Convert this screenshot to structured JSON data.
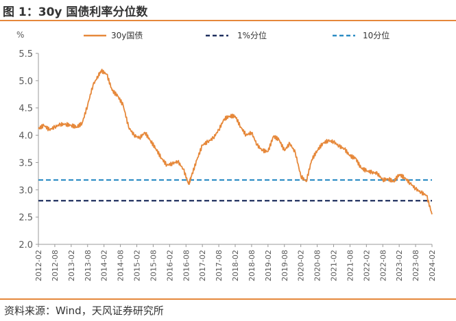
{
  "figure": {
    "title": "图 1：30y 国债利率分位数",
    "source": "资料来源：Wind，天风证券研究所"
  },
  "colors": {
    "accent_rule": "#e5873a",
    "yield_line": "#e6883a",
    "pct1_line": "#1f2f5e",
    "pct10_line": "#2b8cc4",
    "axis": "#999999",
    "tick_text": "#595959"
  },
  "chart_data": {
    "type": "line",
    "ylabel": "%",
    "ylim": [
      2.0,
      5.5
    ],
    "yticks": [
      "2.0",
      "2.5",
      "3.0",
      "3.5",
      "4.0",
      "4.5",
      "5.0",
      "5.5"
    ],
    "xlim": [
      "2012-02",
      "2024-02"
    ],
    "xticks": [
      "2012-02",
      "2012-08",
      "2013-02",
      "2013-08",
      "2014-02",
      "2014-08",
      "2015-02",
      "2015-08",
      "2016-02",
      "2016-08",
      "2017-02",
      "2017-08",
      "2018-02",
      "2018-08",
      "2019-02",
      "2019-08",
      "2020-02",
      "2020-08",
      "2021-02",
      "2021-08",
      "2022-02",
      "2022-08",
      "2023-02",
      "2023-08",
      "2024-02"
    ],
    "grid": false,
    "legend_position": "top",
    "series": [
      {
        "name": "30y国债",
        "style": "solid",
        "x": [
          "2012-02",
          "2012-04",
          "2012-06",
          "2012-08",
          "2012-10",
          "2012-12",
          "2013-02",
          "2013-04",
          "2013-06",
          "2013-08",
          "2013-10",
          "2013-12",
          "2014-01",
          "2014-03",
          "2014-05",
          "2014-07",
          "2014-09",
          "2014-11",
          "2015-01",
          "2015-03",
          "2015-05",
          "2015-07",
          "2015-09",
          "2015-11",
          "2016-01",
          "2016-03",
          "2016-05",
          "2016-07",
          "2016-09",
          "2016-10",
          "2016-12",
          "2017-02",
          "2017-04",
          "2017-06",
          "2017-08",
          "2017-10",
          "2017-12",
          "2018-02",
          "2018-04",
          "2018-06",
          "2018-08",
          "2018-10",
          "2018-12",
          "2019-02",
          "2019-04",
          "2019-06",
          "2019-08",
          "2019-10",
          "2019-12",
          "2020-02",
          "2020-04",
          "2020-06",
          "2020-08",
          "2020-10",
          "2020-12",
          "2021-02",
          "2021-04",
          "2021-06",
          "2021-08",
          "2021-10",
          "2021-12",
          "2022-02",
          "2022-04",
          "2022-06",
          "2022-08",
          "2022-10",
          "2022-12",
          "2023-02",
          "2023-04",
          "2023-06",
          "2023-08",
          "2023-10",
          "2023-12",
          "2024-02"
        ],
        "y": [
          4.12,
          4.18,
          4.1,
          4.15,
          4.2,
          4.2,
          4.18,
          4.15,
          4.22,
          4.55,
          4.92,
          5.1,
          5.18,
          5.12,
          4.82,
          4.72,
          4.55,
          4.15,
          4.0,
          3.95,
          4.05,
          3.9,
          3.75,
          3.58,
          3.45,
          3.48,
          3.52,
          3.38,
          3.1,
          3.25,
          3.55,
          3.82,
          3.88,
          3.95,
          4.1,
          4.3,
          4.35,
          4.35,
          4.15,
          4.0,
          4.05,
          3.82,
          3.72,
          3.7,
          3.98,
          3.92,
          3.72,
          3.85,
          3.68,
          3.25,
          3.15,
          3.55,
          3.72,
          3.85,
          3.9,
          3.88,
          3.8,
          3.75,
          3.62,
          3.58,
          3.4,
          3.35,
          3.32,
          3.3,
          3.18,
          3.2,
          3.15,
          3.28,
          3.22,
          3.12,
          3.02,
          2.95,
          2.9,
          2.55
        ]
      },
      {
        "name": "1%分位",
        "style": "dashed",
        "x": [
          "2012-02",
          "2024-02"
        ],
        "y": [
          2.8,
          2.8
        ]
      },
      {
        "name": "10分位",
        "style": "dashed",
        "x": [
          "2012-02",
          "2024-02"
        ],
        "y": [
          3.18,
          3.18
        ]
      }
    ]
  }
}
